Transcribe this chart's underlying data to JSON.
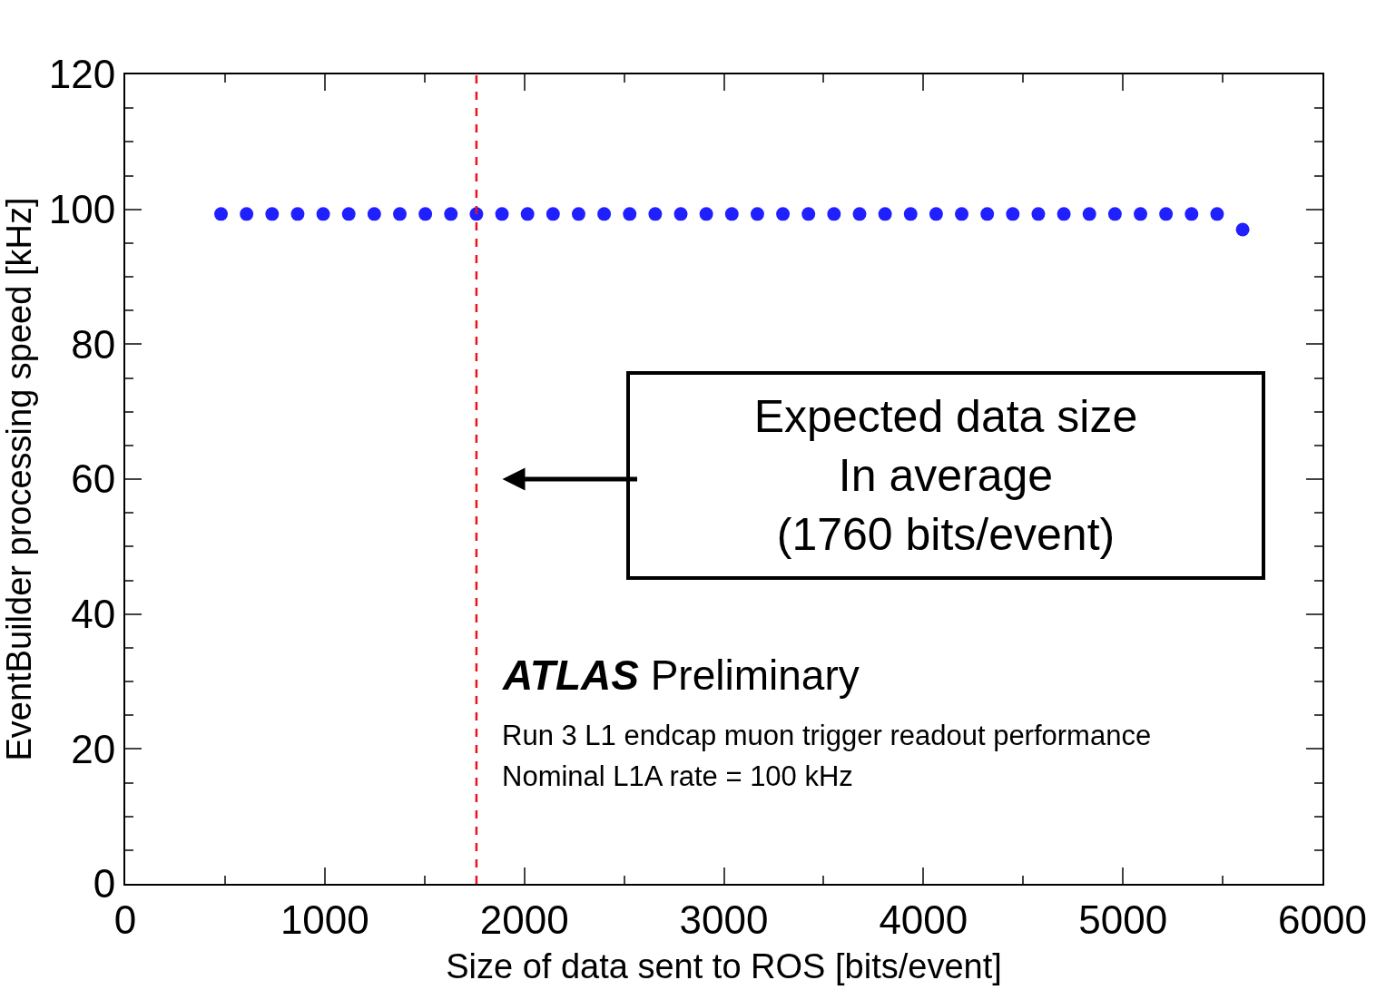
{
  "chart_data": {
    "type": "scatter",
    "xlabel": "Size of data sent to ROS [bits/event]",
    "ylabel": "EventBuilder processing speed [kHz]",
    "x": [
      480,
      608,
      736,
      864,
      992,
      1120,
      1248,
      1376,
      1504,
      1632,
      1760,
      1888,
      2016,
      2144,
      2272,
      2400,
      2528,
      2656,
      2784,
      2912,
      3040,
      3168,
      3296,
      3424,
      3552,
      3680,
      3808,
      3936,
      4064,
      4192,
      4320,
      4448,
      4576,
      4704,
      4832,
      4960,
      5088,
      5216,
      5344,
      5472,
      5600
    ],
    "series": [
      {
        "color": "#1f1fff",
        "values": [
          99.3,
          99.3,
          99.3,
          99.3,
          99.3,
          99.3,
          99.3,
          99.3,
          99.3,
          99.3,
          99.3,
          99.3,
          99.3,
          99.3,
          99.3,
          99.3,
          99.3,
          99.3,
          99.3,
          99.3,
          99.3,
          99.3,
          99.3,
          99.3,
          99.3,
          99.3,
          99.3,
          99.3,
          99.3,
          99.3,
          99.3,
          99.3,
          99.3,
          99.3,
          99.3,
          99.3,
          99.3,
          99.3,
          99.3,
          99.3,
          97
        ]
      }
    ],
    "xlim": [
      0,
      6000
    ],
    "xticks": [
      0,
      1000,
      2000,
      3000,
      4000,
      5000,
      6000
    ],
    "ylim": [
      0,
      120
    ],
    "yticks": [
      0,
      20,
      40,
      60,
      80,
      100,
      120
    ],
    "marker": "circle",
    "ref_lines": [
      {
        "axis": "x",
        "value": 1760,
        "color": "#e8141c",
        "line_style": "dashed"
      }
    ],
    "annotations": [
      "Expected data size\nIn average\n(1760 bits/event)",
      "ATLAS Preliminary",
      "Run 3 L1 endcap muon trigger readout performance",
      "Nominal L1A rate = 100 kHz"
    ]
  }
}
